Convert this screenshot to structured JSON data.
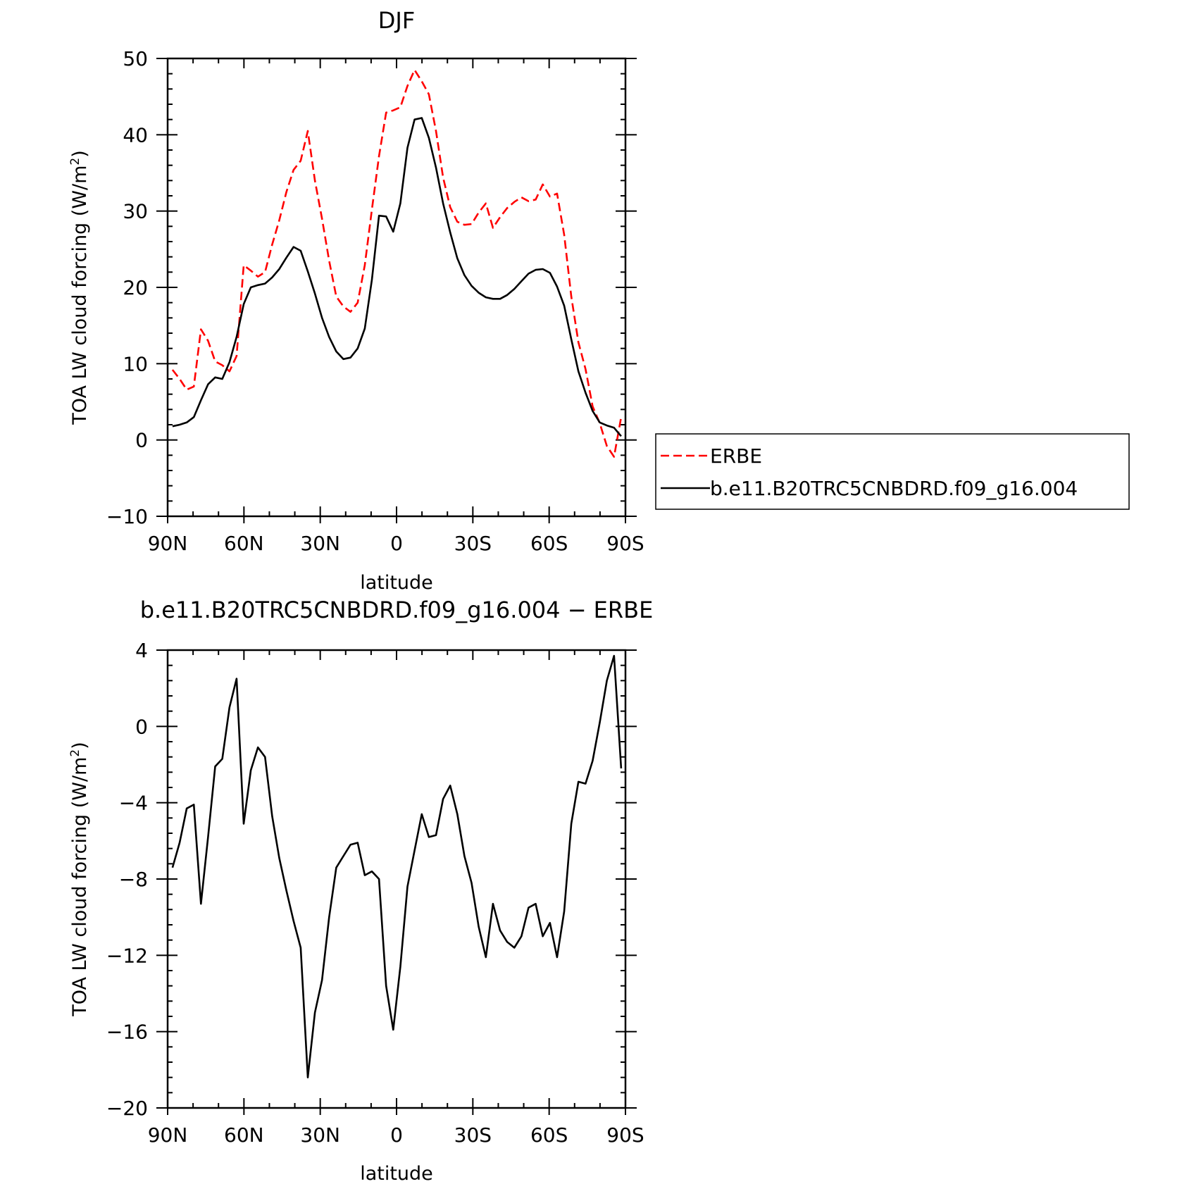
{
  "chart_data": [
    {
      "type": "line",
      "title": "DJF",
      "xlabel": "latitude",
      "ylabel": "TOA LW cloud forcing (W/m",
      "ylabel_sup": "2",
      "ylabel_close": ")",
      "xlim": [
        90,
        -90
      ],
      "ylim": [
        -10,
        50
      ],
      "xticks": [
        90,
        60,
        30,
        0,
        -30,
        -60,
        -90
      ],
      "xtick_labels": [
        "90N",
        "60N",
        "30N",
        "0",
        "30S",
        "60S",
        "90S"
      ],
      "yticks": [
        -10,
        0,
        10,
        20,
        30,
        40,
        50
      ],
      "ytick_labels": [
        "−10",
        "0",
        "10",
        "20",
        "30",
        "40",
        "50"
      ],
      "legend_position": "right",
      "series": [
        {
          "name": "ERBE",
          "color": "#ff0000",
          "dash": "dashed",
          "x": [
            88.1,
            85.3,
            82.5,
            79.7,
            76.9,
            74.1,
            71.3,
            68.5,
            65.7,
            62.9,
            60.1,
            57.3,
            54.5,
            51.7,
            48.9,
            46.1,
            43.3,
            40.5,
            37.7,
            34.9,
            32.1,
            29.3,
            26.5,
            23.7,
            20.9,
            18.1,
            15.3,
            12.5,
            9.7,
            6.9,
            4.1,
            1.3,
            -1.5,
            -4.3,
            -7.1,
            -9.9,
            -12.7,
            -15.5,
            -18.3,
            -21.1,
            -23.9,
            -26.7,
            -29.5,
            -32.3,
            -35.1,
            -37.9,
            -40.7,
            -43.5,
            -46.3,
            -49.1,
            -51.9,
            -54.7,
            -57.5,
            -60.3,
            -63.1,
            -65.9,
            -68.7,
            -71.5,
            -74.3,
            -77.1,
            -79.9,
            -82.7,
            -85.5,
            -88.3
          ],
          "y": [
            9.2,
            8.0,
            6.6,
            7.0,
            14.5,
            13.0,
            10.3,
            9.8,
            9.0,
            11.0,
            22.9,
            22.2,
            21.4,
            22.0,
            25.6,
            28.8,
            32.5,
            35.4,
            36.6,
            40.5,
            34.0,
            29.0,
            23.5,
            18.8,
            17.5,
            16.8,
            18.0,
            22.9,
            30.2,
            37.2,
            42.9,
            43.2,
            43.6,
            46.4,
            48.5,
            47.0,
            45.3,
            40.5,
            34.4,
            30.5,
            28.6,
            28.2,
            28.3,
            29.8,
            31.0,
            27.8,
            29.2,
            30.4,
            31.2,
            31.8,
            31.3,
            31.5,
            33.5,
            31.9,
            32.3,
            26.9,
            18.8,
            12.8,
            9.3,
            4.4,
            2.2,
            -0.8,
            -2.2,
            3.0
          ]
        },
        {
          "name": "b.e11.B20TRC5CNBDRD.f09_g16.004",
          "color": "#000000",
          "dash": "solid",
          "x": [
            88.1,
            85.3,
            82.5,
            79.7,
            76.9,
            74.1,
            71.3,
            68.5,
            65.7,
            62.9,
            60.1,
            57.3,
            54.5,
            51.7,
            48.9,
            46.1,
            43.3,
            40.5,
            37.7,
            34.9,
            32.1,
            29.3,
            26.5,
            23.7,
            20.9,
            18.1,
            15.3,
            12.5,
            9.7,
            6.9,
            4.1,
            1.3,
            -1.5,
            -4.3,
            -7.1,
            -9.9,
            -12.7,
            -15.5,
            -18.3,
            -21.1,
            -23.9,
            -26.7,
            -29.5,
            -32.3,
            -35.1,
            -37.9,
            -40.7,
            -43.5,
            -46.3,
            -49.1,
            -51.9,
            -54.7,
            -57.5,
            -60.3,
            -63.1,
            -65.9,
            -68.7,
            -71.5,
            -74.3,
            -77.1,
            -79.9,
            -82.7,
            -85.5,
            -88.3
          ],
          "y": [
            1.8,
            2.0,
            2.3,
            3.0,
            5.2,
            7.3,
            8.2,
            8.0,
            10.2,
            13.5,
            17.8,
            20.0,
            20.3,
            20.5,
            21.3,
            22.4,
            23.9,
            25.3,
            24.8,
            22.1,
            19.2,
            16.0,
            13.5,
            11.6,
            10.6,
            10.8,
            12.0,
            14.6,
            21.0,
            29.4,
            29.3,
            27.3,
            31.0,
            38.3,
            42.0,
            42.2,
            39.6,
            35.7,
            31.0,
            27.2,
            23.8,
            21.6,
            20.2,
            19.3,
            18.7,
            18.5,
            18.5,
            19.0,
            19.8,
            20.8,
            21.8,
            22.3,
            22.4,
            21.9,
            20.1,
            17.6,
            13.2,
            9.0,
            6.2,
            3.8,
            2.3,
            1.9,
            1.6,
            0.5
          ]
        }
      ]
    },
    {
      "type": "line",
      "title": "b.e11.B20TRC5CNBDRD.f09_g16.004 − ERBE",
      "xlabel": "latitude",
      "ylabel": "TOA LW cloud forcing (W/m",
      "ylabel_sup": "2",
      "ylabel_close": ")",
      "xlim": [
        90,
        -90
      ],
      "ylim": [
        -20,
        4
      ],
      "xticks": [
        90,
        60,
        30,
        0,
        -30,
        -60,
        -90
      ],
      "xtick_labels": [
        "90N",
        "60N",
        "30N",
        "0",
        "30S",
        "60S",
        "90S"
      ],
      "yticks": [
        -20,
        -16,
        -12,
        -8,
        -4,
        0,
        4
      ],
      "ytick_labels": [
        "−20",
        "−16",
        "−12",
        "−8",
        "−4",
        "0",
        "4"
      ],
      "series": [
        {
          "color": "#000000",
          "dash": "solid",
          "x": [
            88.1,
            85.3,
            82.5,
            79.7,
            76.9,
            74.1,
            71.3,
            68.5,
            65.7,
            62.9,
            60.1,
            57.3,
            54.5,
            51.7,
            48.9,
            46.1,
            43.3,
            40.5,
            37.7,
            34.9,
            32.1,
            29.3,
            26.5,
            23.7,
            20.9,
            18.1,
            15.3,
            12.5,
            9.7,
            6.9,
            4.1,
            1.3,
            -1.5,
            -4.3,
            -7.1,
            -9.9,
            -12.7,
            -15.5,
            -18.3,
            -21.1,
            -23.9,
            -26.7,
            -29.5,
            -32.3,
            -35.1,
            -37.9,
            -40.7,
            -43.5,
            -46.3,
            -49.1,
            -51.9,
            -54.7,
            -57.5,
            -60.3,
            -63.1,
            -65.9,
            -68.7,
            -71.5,
            -74.3,
            -77.1,
            -79.9,
            -82.7,
            -85.5,
            -88.3
          ],
          "y": [
            -7.4,
            -6.1,
            -4.3,
            -4.1,
            -9.3,
            -5.8,
            -2.1,
            -1.7,
            1.0,
            2.5,
            -5.1,
            -2.3,
            -1.1,
            -1.6,
            -4.7,
            -6.9,
            -8.6,
            -10.2,
            -11.6,
            -18.4,
            -15.0,
            -13.3,
            -10.0,
            -7.4,
            -6.8,
            -6.2,
            -6.1,
            -7.8,
            -7.6,
            -8.0,
            -13.6,
            -15.9,
            -12.6,
            -8.4,
            -6.5,
            -4.6,
            -5.8,
            -5.7,
            -3.8,
            -3.1,
            -4.6,
            -6.8,
            -8.2,
            -10.5,
            -12.1,
            -9.3,
            -10.7,
            -11.3,
            -11.6,
            -11.0,
            -9.5,
            -9.3,
            -11.0,
            -10.3,
            -12.1,
            -9.7,
            -5.1,
            -2.9,
            -3.0,
            -1.8,
            0.2,
            2.4,
            3.7,
            -2.2
          ]
        }
      ]
    }
  ]
}
